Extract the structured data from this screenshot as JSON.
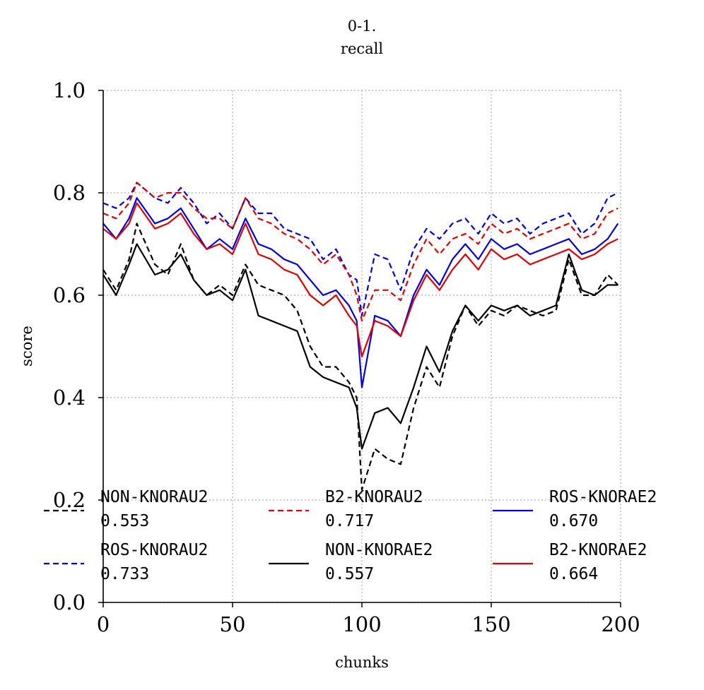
{
  "chart_data": {
    "type": "line",
    "title": "0-1.\nrecall",
    "title_lines": [
      "0-1.",
      "recall"
    ],
    "xlabel": "chunks",
    "ylabel": "score",
    "xlim": [
      0,
      200
    ],
    "ylim": [
      0,
      1
    ],
    "xticks": [
      0,
      50,
      100,
      150,
      200
    ],
    "yticks": [
      0.0,
      0.2,
      0.4,
      0.6,
      0.8,
      1.0
    ],
    "xtick_labels": [
      "0",
      "50",
      "100",
      "150",
      "200"
    ],
    "ytick_labels": [
      "0.0",
      "0.2",
      "0.4",
      "0.6",
      "0.8",
      "1.0"
    ],
    "grid": true,
    "legend_placement": "lower center",
    "series": [
      {
        "name": "NON-KNORAU2",
        "score": "0.553",
        "color": "#000000",
        "dash": true,
        "x": [
          0,
          5,
          10,
          13,
          20,
          25,
          30,
          35,
          40,
          45,
          50,
          55,
          60,
          65,
          70,
          75,
          80,
          85,
          90,
          95,
          98,
          100,
          105,
          110,
          115,
          120,
          125,
          130,
          135,
          140,
          145,
          150,
          155,
          160,
          165,
          170,
          175,
          180,
          185,
          190,
          195,
          199
        ],
        "y": [
          0.65,
          0.61,
          0.67,
          0.74,
          0.66,
          0.64,
          0.7,
          0.63,
          0.6,
          0.62,
          0.6,
          0.66,
          0.62,
          0.61,
          0.6,
          0.57,
          0.5,
          0.46,
          0.46,
          0.43,
          0.4,
          0.22,
          0.3,
          0.28,
          0.27,
          0.38,
          0.46,
          0.42,
          0.52,
          0.58,
          0.54,
          0.57,
          0.56,
          0.58,
          0.57,
          0.56,
          0.57,
          0.67,
          0.6,
          0.6,
          0.64,
          0.62
        ]
      },
      {
        "name": "ROS-KNORAU2",
        "score": "0.733",
        "color": "#0000dd",
        "dash": true,
        "x": [
          0,
          5,
          10,
          13,
          20,
          25,
          30,
          35,
          40,
          45,
          50,
          55,
          60,
          65,
          70,
          75,
          80,
          85,
          90,
          95,
          98,
          100,
          105,
          110,
          115,
          120,
          125,
          130,
          135,
          140,
          145,
          150,
          155,
          160,
          165,
          170,
          175,
          180,
          185,
          190,
          195,
          199
        ],
        "y": [
          0.78,
          0.77,
          0.79,
          0.82,
          0.79,
          0.78,
          0.81,
          0.78,
          0.74,
          0.76,
          0.73,
          0.79,
          0.76,
          0.76,
          0.73,
          0.72,
          0.71,
          0.67,
          0.69,
          0.64,
          0.63,
          0.56,
          0.68,
          0.67,
          0.61,
          0.69,
          0.73,
          0.71,
          0.74,
          0.75,
          0.72,
          0.76,
          0.74,
          0.75,
          0.72,
          0.74,
          0.75,
          0.76,
          0.72,
          0.74,
          0.79,
          0.8
        ]
      },
      {
        "name": "B2-KNORAU2",
        "score": "0.717",
        "color": "#dd0000",
        "dash": true,
        "x": [
          0,
          5,
          10,
          13,
          20,
          25,
          30,
          35,
          40,
          45,
          50,
          55,
          60,
          65,
          70,
          75,
          80,
          85,
          90,
          95,
          98,
          100,
          105,
          110,
          115,
          120,
          125,
          130,
          135,
          140,
          145,
          150,
          155,
          160,
          165,
          170,
          175,
          180,
          185,
          190,
          195,
          199
        ],
        "y": [
          0.76,
          0.75,
          0.78,
          0.82,
          0.79,
          0.8,
          0.8,
          0.77,
          0.75,
          0.75,
          0.73,
          0.79,
          0.75,
          0.74,
          0.72,
          0.71,
          0.69,
          0.66,
          0.68,
          0.64,
          0.6,
          0.55,
          0.61,
          0.61,
          0.59,
          0.66,
          0.71,
          0.68,
          0.71,
          0.72,
          0.7,
          0.74,
          0.72,
          0.73,
          0.71,
          0.72,
          0.73,
          0.74,
          0.71,
          0.72,
          0.76,
          0.77
        ]
      },
      {
        "name": "NON-KNORAE2",
        "score": "0.557",
        "color": "#000000",
        "dash": false,
        "x": [
          0,
          5,
          10,
          13,
          20,
          25,
          30,
          35,
          40,
          45,
          50,
          55,
          60,
          65,
          70,
          75,
          80,
          85,
          90,
          95,
          98,
          100,
          105,
          110,
          115,
          120,
          125,
          130,
          135,
          140,
          145,
          150,
          155,
          160,
          165,
          170,
          175,
          180,
          185,
          190,
          195,
          199
        ],
        "y": [
          0.64,
          0.6,
          0.66,
          0.7,
          0.64,
          0.65,
          0.68,
          0.63,
          0.6,
          0.61,
          0.59,
          0.65,
          0.56,
          0.55,
          0.54,
          0.53,
          0.46,
          0.44,
          0.43,
          0.42,
          0.38,
          0.3,
          0.37,
          0.38,
          0.35,
          0.42,
          0.5,
          0.45,
          0.53,
          0.58,
          0.55,
          0.58,
          0.57,
          0.58,
          0.56,
          0.57,
          0.58,
          0.68,
          0.61,
          0.6,
          0.62,
          0.62
        ]
      },
      {
        "name": "ROS-KNORAE2",
        "score": "0.670",
        "color": "#0000dd",
        "dash": false,
        "x": [
          0,
          5,
          10,
          13,
          20,
          25,
          30,
          35,
          40,
          45,
          50,
          55,
          60,
          65,
          70,
          75,
          80,
          85,
          90,
          95,
          98,
          100,
          105,
          110,
          115,
          120,
          125,
          130,
          135,
          140,
          145,
          150,
          155,
          160,
          165,
          170,
          175,
          180,
          185,
          190,
          195,
          199
        ],
        "y": [
          0.74,
          0.71,
          0.75,
          0.79,
          0.74,
          0.75,
          0.77,
          0.73,
          0.69,
          0.71,
          0.69,
          0.75,
          0.7,
          0.69,
          0.67,
          0.66,
          0.63,
          0.6,
          0.61,
          0.58,
          0.55,
          0.42,
          0.56,
          0.55,
          0.52,
          0.6,
          0.65,
          0.62,
          0.67,
          0.7,
          0.67,
          0.71,
          0.69,
          0.7,
          0.68,
          0.69,
          0.7,
          0.71,
          0.68,
          0.69,
          0.71,
          0.74
        ]
      },
      {
        "name": "B2-KNORAE2",
        "score": "0.664",
        "color": "#dd0000",
        "dash": false,
        "x": [
          0,
          5,
          10,
          13,
          20,
          25,
          30,
          35,
          40,
          45,
          50,
          55,
          60,
          65,
          70,
          75,
          80,
          85,
          90,
          95,
          98,
          100,
          105,
          110,
          115,
          120,
          125,
          130,
          135,
          140,
          145,
          150,
          155,
          160,
          165,
          170,
          175,
          180,
          185,
          190,
          195,
          199
        ],
        "y": [
          0.73,
          0.71,
          0.74,
          0.78,
          0.73,
          0.74,
          0.76,
          0.72,
          0.69,
          0.7,
          0.68,
          0.74,
          0.68,
          0.67,
          0.65,
          0.64,
          0.6,
          0.58,
          0.6,
          0.56,
          0.54,
          0.48,
          0.55,
          0.54,
          0.52,
          0.59,
          0.64,
          0.61,
          0.65,
          0.68,
          0.65,
          0.69,
          0.67,
          0.68,
          0.66,
          0.67,
          0.68,
          0.69,
          0.67,
          0.68,
          0.7,
          0.71
        ]
      }
    ]
  }
}
